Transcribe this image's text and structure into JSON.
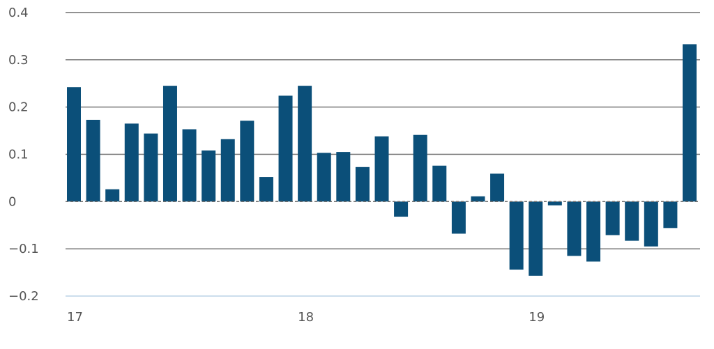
{
  "chart_data": {
    "type": "bar",
    "title": "",
    "xlabel": "",
    "ylabel": "",
    "ylim": [
      -0.2,
      0.4
    ],
    "yticks": [
      {
        "value": 0.4,
        "label": "0.4"
      },
      {
        "value": 0.3,
        "label": "0.3"
      },
      {
        "value": 0.2,
        "label": "0.2"
      },
      {
        "value": 0.1,
        "label": "0.1"
      },
      {
        "value": 0,
        "label": "0"
      },
      {
        "value": -0.1,
        "label": "−0.1"
      },
      {
        "value": -0.2,
        "label": "−0.2"
      }
    ],
    "xticks": [
      {
        "index": 0,
        "label": "17"
      },
      {
        "index": 12,
        "label": "18"
      },
      {
        "index": 24,
        "label": "19"
      }
    ],
    "values": [
      0.242,
      0.173,
      0.026,
      0.165,
      0.144,
      0.245,
      0.153,
      0.108,
      0.132,
      0.171,
      0.052,
      0.224,
      0.245,
      0.103,
      0.105,
      0.073,
      0.138,
      -0.032,
      0.141,
      0.076,
      -0.068,
      0.011,
      0.059,
      -0.144,
      -0.157,
      -0.008,
      -0.115,
      -0.127,
      -0.071,
      -0.083,
      -0.095,
      -0.056,
      0.333
    ],
    "grid": true,
    "colors": {
      "bar": "#0b4f79",
      "grid": "#6e6e6e",
      "bottom_axis": "#bcd3e6",
      "tick_text": "#555555"
    }
  }
}
